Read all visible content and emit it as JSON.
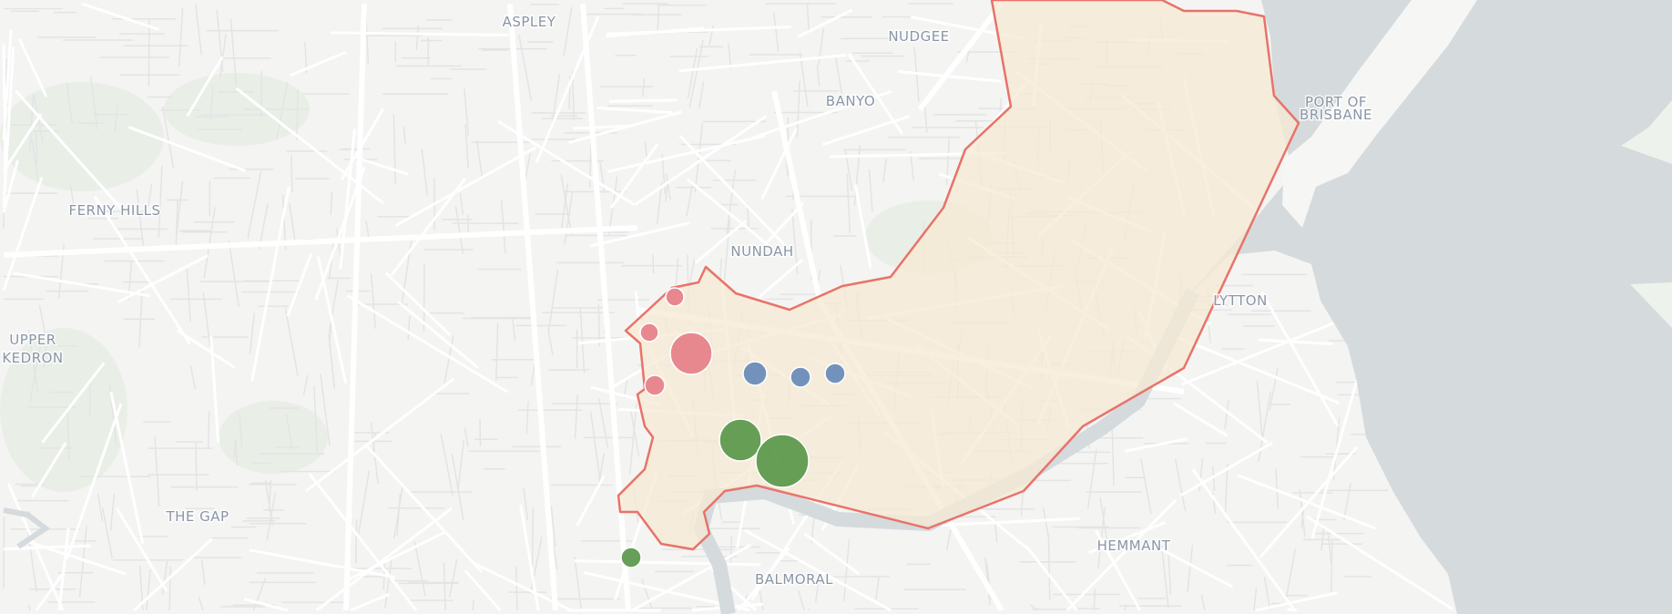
{
  "map": {
    "place_labels": {
      "aspley": "ASPLEY",
      "nudgee": "NUDGEE",
      "banyo": "BANYO",
      "port_of_brisbane_line1": "PORT OF",
      "port_of_brisbane_line2": "BRISBANE",
      "ferny_hills": "FERNY HILLS",
      "nundah": "NUNDAH",
      "upper_kedron_line1": "UPPER",
      "upper_kedron_line2": "KEDRON",
      "lytton": "LYTTON",
      "the_gap": "THE GAP",
      "hemmant": "HEMMANT",
      "balmoral": "BALMORAL"
    },
    "colors": {
      "land": "#f4f4f3",
      "water": "#d5dadd",
      "road": "#ffffff",
      "park": "#e9efe7",
      "region_fill": "#f6ead3",
      "region_stroke": "#e8736a",
      "marker_red": "#e6838b",
      "marker_blue": "#6b8db9",
      "marker_green": "#5e9a4f"
    },
    "markers": [
      {
        "color": "marker_red"
      },
      {
        "color": "marker_red"
      },
      {
        "color": "marker_red"
      },
      {
        "color": "marker_red"
      },
      {
        "color": "marker_blue"
      },
      {
        "color": "marker_blue"
      },
      {
        "color": "marker_blue"
      },
      {
        "color": "marker_green"
      },
      {
        "color": "marker_green"
      },
      {
        "color": "marker_green"
      }
    ]
  }
}
